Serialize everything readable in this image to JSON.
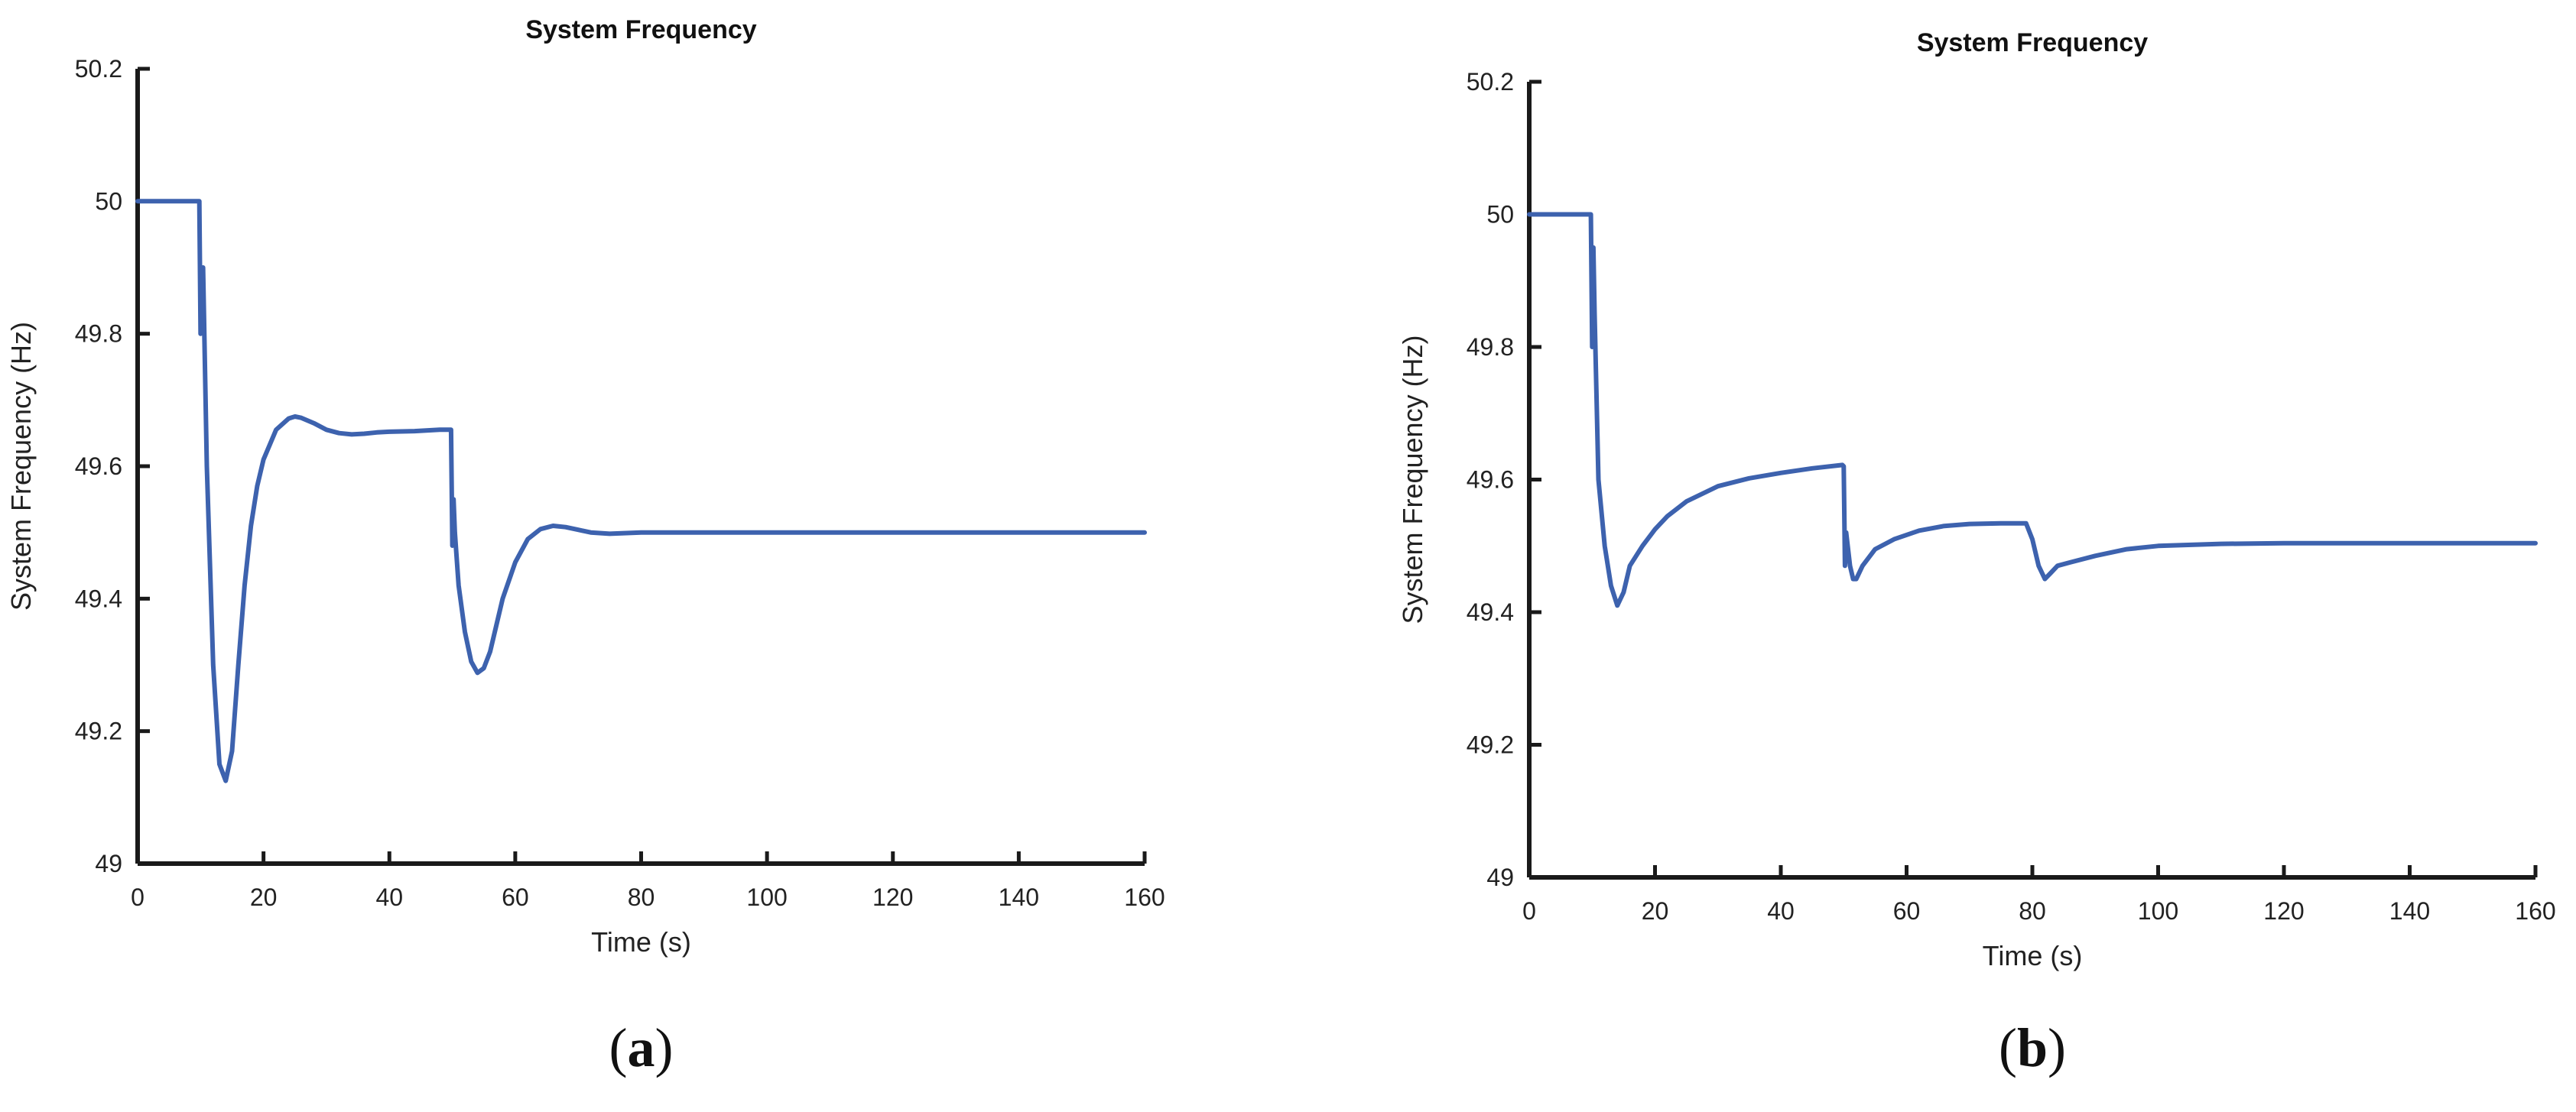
{
  "chart_data": [
    {
      "type": "line",
      "title": "System Frequency",
      "xlabel": "Time (s)",
      "ylabel": "System Frequency (Hz)",
      "xlim": [
        0,
        160
      ],
      "ylim": [
        49,
        50.2
      ],
      "xticks": [
        "0",
        "20",
        "40",
        "60",
        "80",
        "100",
        "120",
        "140",
        "160"
      ],
      "yticks": [
        "49",
        "49.2",
        "49.4",
        "49.6",
        "49.8",
        "50",
        "50.2"
      ],
      "panel_label": "a",
      "color": "#3d62ae",
      "x": [
        0,
        9.8,
        10,
        10.2,
        10.3,
        10.4,
        11,
        12,
        13,
        14,
        15,
        16,
        17,
        18,
        19,
        20,
        22,
        24,
        25,
        26,
        28,
        30,
        32,
        34,
        36,
        38,
        40,
        44,
        48,
        49.8,
        50,
        50.2,
        50.4,
        51,
        52,
        53,
        54,
        55,
        56,
        57,
        58,
        60,
        62,
        64,
        66,
        68,
        70,
        72,
        75,
        80,
        90,
        100,
        120,
        140,
        160
      ],
      "y": [
        50.0,
        50.0,
        49.8,
        49.9,
        49.82,
        49.9,
        49.6,
        49.3,
        49.15,
        49.125,
        49.17,
        49.3,
        49.42,
        49.51,
        49.57,
        49.61,
        49.655,
        49.672,
        49.675,
        49.673,
        49.665,
        49.655,
        49.65,
        49.648,
        49.649,
        49.651,
        49.652,
        49.653,
        49.655,
        49.655,
        49.48,
        49.55,
        49.5,
        49.42,
        49.35,
        49.305,
        49.288,
        49.295,
        49.32,
        49.36,
        49.4,
        49.455,
        49.49,
        49.505,
        49.51,
        49.508,
        49.504,
        49.5,
        49.498,
        49.5,
        49.5,
        49.5,
        49.5,
        49.5,
        49.5
      ]
    },
    {
      "type": "line",
      "title": "System Frequency",
      "xlabel": "Time (s)",
      "ylabel": "System Frequency (Hz)",
      "xlim": [
        0,
        160
      ],
      "ylim": [
        49,
        50.2
      ],
      "xticks": [
        "0",
        "20",
        "40",
        "60",
        "80",
        "100",
        "120",
        "140",
        "160"
      ],
      "yticks": [
        "49",
        "49.2",
        "49.4",
        "49.6",
        "49.8",
        "50",
        "50.2"
      ],
      "panel_label": "b",
      "color": "#3d62ae",
      "x": [
        0,
        9.8,
        10,
        10.2,
        10.4,
        11,
        12,
        13,
        14,
        15,
        16,
        18,
        20,
        22,
        25,
        30,
        35,
        40,
        45,
        49.8,
        50,
        50.2,
        50.4,
        51,
        51.5,
        52,
        53,
        55,
        58,
        62,
        66,
        70,
        75,
        79,
        80,
        81,
        82,
        83,
        84,
        86,
        90,
        95,
        100,
        110,
        120,
        140,
        160
      ],
      "y": [
        50.0,
        50.0,
        49.8,
        49.95,
        49.85,
        49.6,
        49.5,
        49.44,
        49.41,
        49.43,
        49.47,
        49.5,
        49.525,
        49.545,
        49.567,
        49.59,
        49.602,
        49.61,
        49.617,
        49.622,
        49.62,
        49.47,
        49.52,
        49.47,
        49.45,
        49.45,
        49.47,
        49.495,
        49.51,
        49.523,
        49.53,
        49.533,
        49.534,
        49.534,
        49.51,
        49.47,
        49.45,
        49.46,
        49.47,
        49.475,
        49.485,
        49.495,
        49.5,
        49.503,
        49.504,
        49.504,
        49.504
      ]
    }
  ]
}
